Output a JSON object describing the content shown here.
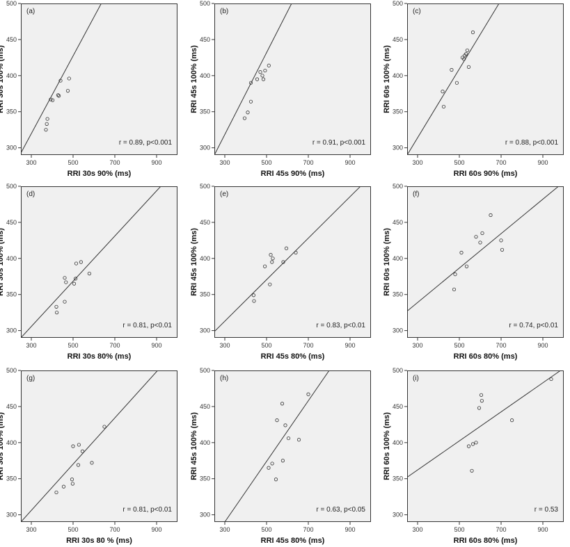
{
  "chart_data": [
    {
      "type": "scatter",
      "panel_label": "(a)",
      "xlabel": "RRI 30s 90% (ms)",
      "ylabel": "RRI 30s 100% (ms)",
      "xlim": [
        250,
        1000
      ],
      "ylim": [
        290,
        500
      ],
      "xticks": [
        300,
        500,
        700,
        900
      ],
      "yticks": [
        300,
        350,
        400,
        450,
        500
      ],
      "annotation": "r = 0.89, p<0.001",
      "points": [
        [
          370,
          325
        ],
        [
          374,
          333
        ],
        [
          377,
          340
        ],
        [
          393,
          367
        ],
        [
          402,
          366
        ],
        [
          428,
          373
        ],
        [
          432,
          372
        ],
        [
          440,
          393
        ],
        [
          475,
          379
        ],
        [
          481,
          396
        ]
      ],
      "fit_line": [
        [
          245,
          290
        ],
        [
          635,
          500
        ]
      ]
    },
    {
      "type": "scatter",
      "panel_label": "(b)",
      "xlabel": "RRI 45s 90% (ms)",
      "ylabel": "RRI 45s 100% (ms)",
      "xlim": [
        250,
        1000
      ],
      "ylim": [
        290,
        500
      ],
      "xticks": [
        300,
        500,
        700,
        900
      ],
      "yticks": [
        300,
        350,
        400,
        450,
        500
      ],
      "annotation": "r = 0.91, p<0.001",
      "points": [
        [
          395,
          341
        ],
        [
          410,
          349
        ],
        [
          425,
          364
        ],
        [
          425,
          390
        ],
        [
          455,
          395
        ],
        [
          470,
          405
        ],
        [
          480,
          400
        ],
        [
          485,
          395
        ],
        [
          493,
          407
        ],
        [
          511,
          414
        ]
      ],
      "fit_line": [
        [
          250,
          290
        ],
        [
          620,
          500
        ]
      ]
    },
    {
      "type": "scatter",
      "panel_label": "(c)",
      "xlabel": "RRI 60s 90% (ms)",
      "ylabel": "RRI 60s 100% (ms)",
      "xlim": [
        250,
        1000
      ],
      "ylim": [
        290,
        500
      ],
      "xticks": [
        300,
        500,
        700,
        900
      ],
      "yticks": [
        300,
        350,
        400,
        450,
        500
      ],
      "annotation": "r = 0.88, p<0.001",
      "points": [
        [
          420,
          378
        ],
        [
          425,
          357
        ],
        [
          463,
          408
        ],
        [
          488,
          390
        ],
        [
          515,
          425
        ],
        [
          522,
          423
        ],
        [
          526,
          428
        ],
        [
          532,
          430
        ],
        [
          538,
          435
        ],
        [
          545,
          412
        ],
        [
          565,
          460
        ]
      ],
      "fit_line": [
        [
          250,
          290
        ],
        [
          690,
          500
        ]
      ]
    },
    {
      "type": "scatter",
      "panel_label": "(d)",
      "xlabel": "RRI 30s 80% (ms)",
      "ylabel": "RRI 30s 100% (ms)",
      "xlim": [
        250,
        1000
      ],
      "ylim": [
        290,
        500
      ],
      "xticks": [
        300,
        500,
        700,
        900
      ],
      "yticks": [
        300,
        350,
        400,
        450,
        500
      ],
      "annotation": "r = 0.81, p<0.01",
      "points": [
        [
          420,
          333
        ],
        [
          422,
          325
        ],
        [
          460,
          340
        ],
        [
          460,
          373
        ],
        [
          466,
          367
        ],
        [
          505,
          365
        ],
        [
          512,
          372
        ],
        [
          515,
          393
        ],
        [
          538,
          395
        ],
        [
          578,
          379
        ]
      ],
      "fit_line": [
        [
          250,
          290
        ],
        [
          920,
          500
        ]
      ]
    },
    {
      "type": "scatter",
      "panel_label": "(e)",
      "xlabel": "RRI 45s 80% (ms)",
      "ylabel": "RRI 45s 100% (ms)",
      "xlim": [
        250,
        1000
      ],
      "ylim": [
        290,
        500
      ],
      "xticks": [
        300,
        500,
        700,
        900
      ],
      "yticks": [
        300,
        350,
        400,
        450,
        500
      ],
      "annotation": "r = 0.83, p<0.01",
      "points": [
        [
          438,
          349
        ],
        [
          440,
          341
        ],
        [
          492,
          389
        ],
        [
          516,
          364
        ],
        [
          520,
          405
        ],
        [
          526,
          395
        ],
        [
          530,
          400
        ],
        [
          580,
          395
        ],
        [
          595,
          414
        ],
        [
          640,
          408
        ]
      ],
      "fit_line": [
        [
          220,
          290
        ],
        [
          950,
          500
        ]
      ]
    },
    {
      "type": "scatter",
      "panel_label": "(f)",
      "xlabel": "RRI 60s 80% (ms)",
      "ylabel": "RRI 60s 100% (ms)",
      "xlim": [
        250,
        1000
      ],
      "ylim": [
        290,
        500
      ],
      "xticks": [
        300,
        500,
        700,
        900
      ],
      "yticks": [
        300,
        350,
        400,
        450,
        500
      ],
      "annotation": "r = 0.74, p<0.01",
      "points": [
        [
          475,
          357
        ],
        [
          480,
          378
        ],
        [
          510,
          408
        ],
        [
          535,
          389
        ],
        [
          580,
          430
        ],
        [
          600,
          422
        ],
        [
          610,
          435
        ],
        [
          650,
          460
        ],
        [
          700,
          425
        ],
        [
          705,
          412
        ]
      ],
      "fit_line": [
        [
          250,
          327
        ],
        [
          975,
          500
        ]
      ]
    },
    {
      "type": "scatter",
      "panel_label": "(g)",
      "xlabel": "RRI 30s 80 % (ms)",
      "ylabel": "RRI 30s 100% (ms)",
      "xlim": [
        250,
        1000
      ],
      "ylim": [
        290,
        500
      ],
      "xticks": [
        300,
        500,
        700,
        900
      ],
      "yticks": [
        300,
        350,
        400,
        450,
        500
      ],
      "annotation": "r = 0.81, p<0.01",
      "points": [
        [
          420,
          331
        ],
        [
          455,
          339
        ],
        [
          495,
          349
        ],
        [
          498,
          343
        ],
        [
          500,
          395
        ],
        [
          525,
          369
        ],
        [
          528,
          397
        ],
        [
          545,
          388
        ],
        [
          590,
          372
        ],
        [
          650,
          422
        ]
      ],
      "fit_line": [
        [
          250,
          290
        ],
        [
          905,
          500
        ]
      ]
    },
    {
      "type": "scatter",
      "panel_label": "(h)",
      "xlabel": "RRI 45s 80% (ms)",
      "ylabel": "RRI 45s 100% (ms)",
      "xlim": [
        250,
        1000
      ],
      "ylim": [
        290,
        500
      ],
      "xticks": [
        300,
        500,
        700,
        900
      ],
      "yticks": [
        300,
        350,
        400,
        450,
        500
      ],
      "annotation": "r = 0.63, p<0.05",
      "points": [
        [
          510,
          365
        ],
        [
          527,
          371
        ],
        [
          545,
          349
        ],
        [
          550,
          431
        ],
        [
          575,
          454
        ],
        [
          578,
          375
        ],
        [
          590,
          424
        ],
        [
          605,
          406
        ],
        [
          655,
          404
        ],
        [
          700,
          467
        ]
      ],
      "fit_line": [
        [
          300,
          290
        ],
        [
          800,
          500
        ]
      ]
    },
    {
      "type": "scatter",
      "panel_label": "(i)",
      "xlabel": "RRI 60s 80% (ms)",
      "ylabel": "RRI 60s 100% (ms)",
      "xlim": [
        250,
        1000
      ],
      "ylim": [
        290,
        500
      ],
      "xticks": [
        300,
        500,
        700,
        900
      ],
      "yticks": [
        300,
        350,
        400,
        450,
        500
      ],
      "annotation": "r = 0.53",
      "points": [
        [
          545,
          395
        ],
        [
          560,
          361
        ],
        [
          565,
          398
        ],
        [
          580,
          400
        ],
        [
          595,
          448
        ],
        [
          605,
          466
        ],
        [
          608,
          458
        ],
        [
          752,
          431
        ],
        [
          940,
          488
        ]
      ],
      "fit_line": [
        [
          250,
          352
        ],
        [
          985,
          500
        ]
      ]
    }
  ]
}
